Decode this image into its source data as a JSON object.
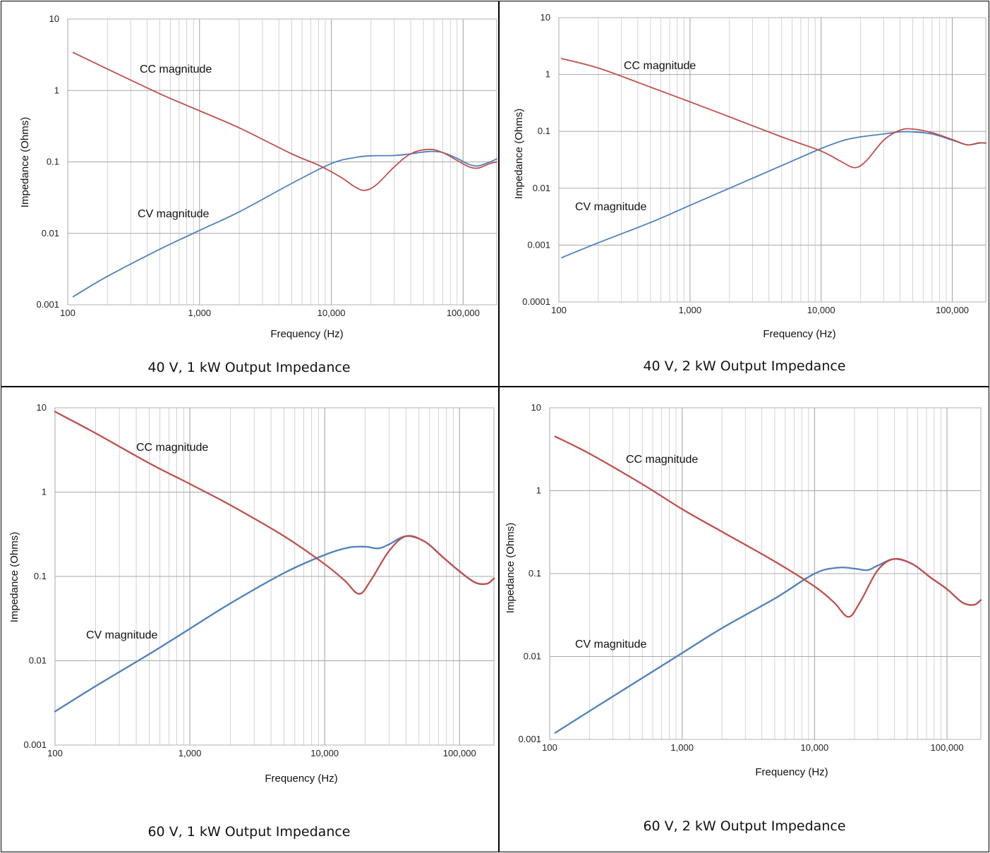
{
  "colors": {
    "cc": "#c0504d",
    "cv": "#4f81bd",
    "grid": "#c8c8c8",
    "frame": "#000000"
  },
  "chart_data": [
    {
      "type": "line",
      "title": "40 V, 1 kW Output Impedance",
      "xlabel": "Frequency (Hz)",
      "ylabel": "Impedance (Ohms)",
      "x_scale": "log",
      "y_scale": "log",
      "xlim": [
        100,
        180000
      ],
      "ylim": [
        0.001,
        10
      ],
      "x_ticks": [
        "100",
        "1,000",
        "10,000",
        "100,000"
      ],
      "y_ticks": [
        "0.001",
        "0.01",
        "0.1",
        "1",
        "10"
      ],
      "grid": true,
      "annotations": [
        "CC magnitude",
        "CV magnitude"
      ],
      "series": [
        {
          "name": "CC magnitude",
          "color": "#c0504d",
          "x": [
            110,
            200,
            500,
            1000,
            2000,
            5000,
            8000,
            12000,
            15000,
            18000,
            22000,
            30000,
            40000,
            55000,
            70000,
            90000,
            110000,
            130000,
            160000,
            180000
          ],
          "y": [
            3.4,
            2.0,
            0.9,
            0.52,
            0.3,
            0.13,
            0.09,
            0.06,
            0.045,
            0.04,
            0.048,
            0.085,
            0.13,
            0.15,
            0.135,
            0.105,
            0.086,
            0.082,
            0.095,
            0.1
          ]
        },
        {
          "name": "CV magnitude",
          "color": "#4f81bd",
          "x": [
            110,
            200,
            500,
            1000,
            2000,
            5000,
            10000,
            15000,
            20000,
            30000,
            40000,
            55000,
            70000,
            90000,
            110000,
            130000,
            160000,
            180000
          ],
          "y": [
            0.0013,
            0.0025,
            0.006,
            0.011,
            0.02,
            0.05,
            0.095,
            0.115,
            0.122,
            0.123,
            0.13,
            0.14,
            0.135,
            0.112,
            0.093,
            0.088,
            0.1,
            0.11
          ]
        }
      ]
    },
    {
      "type": "line",
      "title": "40 V, 2 kW Output Impedance",
      "xlabel": "Frequency (Hz)",
      "ylabel": "Impedance (Ohms)",
      "x_scale": "log",
      "y_scale": "log",
      "xlim": [
        100,
        180000
      ],
      "ylim": [
        0.0001,
        10
      ],
      "x_ticks": [
        "100",
        "1,000",
        "10,000",
        "100,000"
      ],
      "y_ticks": [
        "0.0001",
        "0.001",
        "0.01",
        "0.1",
        "1",
        "10"
      ],
      "grid": true,
      "annotations": [
        "CC magnitude",
        "CV magnitude"
      ],
      "series": [
        {
          "name": "CC magnitude",
          "color": "#c0504d",
          "x": [
            105,
            200,
            500,
            1000,
            2000,
            5000,
            10000,
            14000,
            18000,
            22000,
            30000,
            40000,
            50000,
            70000,
            100000,
            130000,
            160000,
            180000
          ],
          "y": [
            1.9,
            1.3,
            0.6,
            0.33,
            0.18,
            0.08,
            0.045,
            0.03,
            0.023,
            0.03,
            0.07,
            0.105,
            0.11,
            0.095,
            0.072,
            0.058,
            0.063,
            0.062
          ]
        },
        {
          "name": "CV magnitude",
          "color": "#4f81bd",
          "x": [
            105,
            200,
            500,
            1000,
            2000,
            5000,
            10000,
            15000,
            20000,
            30000,
            40000,
            50000,
            70000,
            100000,
            130000,
            160000,
            180000
          ],
          "y": [
            0.0006,
            0.0011,
            0.0025,
            0.005,
            0.01,
            0.025,
            0.05,
            0.07,
            0.08,
            0.09,
            0.098,
            0.098,
            0.09,
            0.07,
            0.058,
            0.062,
            0.063
          ]
        }
      ]
    },
    {
      "type": "line",
      "title": "60 V, 1 kW Output Impedance",
      "xlabel": "Frequency (Hz)",
      "ylabel": "Impedance (Ohms)",
      "x_scale": "log",
      "y_scale": "log",
      "xlim": [
        100,
        180000
      ],
      "ylim": [
        0.001,
        10
      ],
      "x_ticks": [
        "100",
        "1,000",
        "10,000",
        "100,000"
      ],
      "y_ticks": [
        "0.001",
        "0.01",
        "0.1",
        "1",
        "10"
      ],
      "grid": true,
      "annotations": [
        "CC magnitude",
        "CV magnitude"
      ],
      "series": [
        {
          "name": "CC magnitude",
          "color": "#c0504d",
          "x": [
            100,
            200,
            500,
            1000,
            2000,
            5000,
            10000,
            14000,
            18000,
            22000,
            30000,
            40000,
            55000,
            75000,
            100000,
            130000,
            160000,
            180000
          ],
          "y": [
            9.0,
            5.0,
            2.2,
            1.25,
            0.7,
            0.3,
            0.14,
            0.09,
            0.062,
            0.09,
            0.2,
            0.3,
            0.26,
            0.17,
            0.115,
            0.085,
            0.082,
            0.095
          ]
        },
        {
          "name": "CV magnitude",
          "color": "#4f81bd",
          "x": [
            100,
            200,
            500,
            1000,
            2000,
            5000,
            10000,
            15000,
            20000,
            25000,
            30000,
            40000,
            55000,
            75000,
            100000,
            130000,
            160000,
            180000
          ],
          "y": [
            0.0025,
            0.005,
            0.012,
            0.024,
            0.048,
            0.11,
            0.18,
            0.22,
            0.225,
            0.215,
            0.24,
            0.3,
            0.26,
            0.17,
            0.115,
            0.085,
            0.082,
            0.095
          ]
        }
      ]
    },
    {
      "type": "line",
      "title": "60 V, 2 kW Output Impedance",
      "xlabel": "Frequency (Hz)",
      "ylabel": "Impedance (Ohms)",
      "x_scale": "log",
      "y_scale": "log",
      "xlim": [
        100,
        180000
      ],
      "ylim": [
        0.001,
        10
      ],
      "x_ticks": [
        "100",
        "1,000",
        "10,000",
        "100,000"
      ],
      "y_ticks": [
        "0.001",
        "0.01",
        "0.1",
        "1",
        "10"
      ],
      "grid": true,
      "annotations": [
        "CC magnitude",
        "CV magnitude"
      ],
      "series": [
        {
          "name": "CC magnitude",
          "color": "#c0504d",
          "x": [
            110,
            200,
            500,
            1000,
            2000,
            5000,
            10000,
            14000,
            18000,
            22000,
            30000,
            40000,
            55000,
            75000,
            100000,
            130000,
            160000,
            180000
          ],
          "y": [
            4.5,
            2.8,
            1.2,
            0.6,
            0.32,
            0.14,
            0.07,
            0.045,
            0.03,
            0.045,
            0.11,
            0.15,
            0.13,
            0.09,
            0.065,
            0.045,
            0.042,
            0.048
          ]
        },
        {
          "name": "CV magnitude",
          "color": "#4f81bd",
          "x": [
            110,
            200,
            500,
            1000,
            2000,
            5000,
            10000,
            15000,
            20000,
            25000,
            30000,
            40000,
            55000,
            75000,
            100000,
            130000,
            160000,
            180000
          ],
          "y": [
            0.0012,
            0.0022,
            0.0055,
            0.011,
            0.022,
            0.05,
            0.1,
            0.118,
            0.115,
            0.11,
            0.125,
            0.15,
            0.13,
            0.09,
            0.065,
            0.045,
            0.042,
            0.048
          ]
        }
      ]
    }
  ]
}
